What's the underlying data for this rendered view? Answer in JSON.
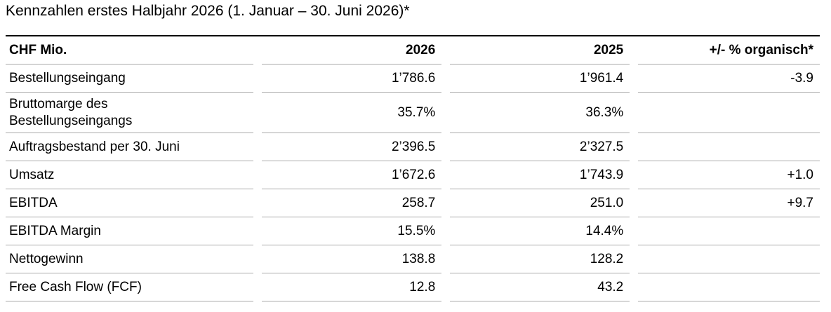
{
  "title": "Kennzahlen erstes Halbjahr 2026 (1. Januar – 30. Juni 2026)*",
  "table": {
    "header": [
      "CHF Mio.",
      "2026",
      "2025",
      "+/- % organisch*"
    ],
    "rows": [
      [
        "Bestellungseingang",
        "1’786.6",
        "1’961.4",
        "-3.9"
      ],
      [
        "Bruttomarge des Bestellungseingangs",
        "35.7%",
        "36.3%",
        null
      ],
      [
        "Auftragsbestand per 30. Juni",
        "2’396.5",
        "2’327.5",
        null
      ],
      [
        "Umsatz",
        "1’672.6",
        "1’743.9",
        "+1.0"
      ],
      [
        "EBITDA",
        "258.7",
        "251.0",
        "+9.7"
      ],
      [
        "EBITDA Margin",
        "15.5%",
        "14.4%",
        null
      ],
      [
        "Nettogewinn",
        "138.8",
        "128.2",
        null
      ],
      [
        "Free Cash Flow (FCF)",
        "12.8",
        "43.2",
        null
      ]
    ]
  }
}
